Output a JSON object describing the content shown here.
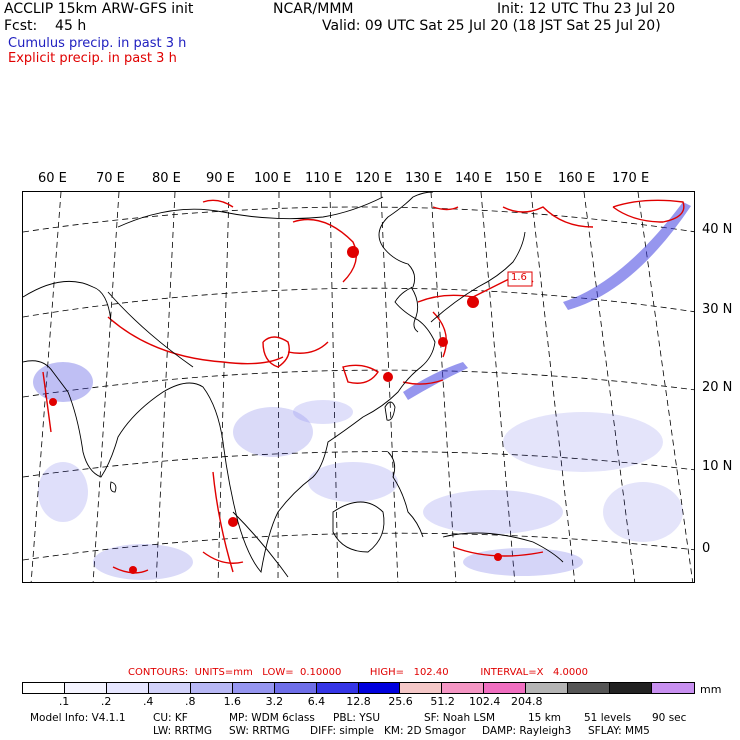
{
  "header": {
    "model": "ACCLIP 15km ARW-GFS init",
    "fcst": "Fcst:    45 h",
    "org": "NCAR/MMM",
    "init": "Init: 12 UTC Thu 23 Jul 20",
    "valid": "Valid: 09 UTC Sat 25 Jul 20 (18 JST Sat 25 Jul 20)",
    "cumulus": "Cumulus precip. in past 3 h",
    "explicit": "Explicit precip. in past 3 h"
  },
  "map": {
    "lon_labels": [
      "60 E",
      "70 E",
      "80 E",
      "90 E",
      "100 E",
      "110 E",
      "120 E",
      "130 E",
      "140 E",
      "150 E",
      "160 E",
      "170 E"
    ],
    "lat_labels": [
      "40 N",
      "30 N",
      "20 N",
      "10 N",
      "0"
    ],
    "marker": "1.6",
    "colors": {
      "cumulus": "#3030e0",
      "explicit": "#e00000",
      "coast": "#000000"
    }
  },
  "legend": {
    "contours_text": "CONTOURS:  UNITS=mm   LOW=  0.10000         HIGH=   102.40          INTERVAL=X   4.0000",
    "ticks": [
      ".1",
      ".2",
      ".4",
      ".8",
      "1.6",
      "3.2",
      "6.4",
      "12.8",
      "25.6",
      "51.2",
      "102.4",
      "204.8"
    ],
    "unit": "mm",
    "colors": [
      "#ffffff",
      "#f4f4ff",
      "#e6e6ff",
      "#d2d2fa",
      "#b8b8f5",
      "#9696f0",
      "#6e6ee8",
      "#3535e6",
      "#0000dd",
      "#f5c8c8",
      "#f596c4",
      "#f06ec0",
      "#b4b4b4",
      "#555555",
      "#222222",
      "#c890f0"
    ]
  },
  "model_info": {
    "line1": [
      "Model Info: V4.1.1",
      "CU: KF",
      "MP: WDM 6class",
      "PBL: YSU",
      "SF: Noah LSM",
      "15 km",
      "51 levels",
      "90 sec"
    ],
    "line2": [
      "LW: RRTMG",
      "SW: RRTMG",
      "DIFF: simple",
      "KM: 2D Smagor",
      "DAMP: Rayleigh3",
      "SFLAY: MM5"
    ]
  }
}
